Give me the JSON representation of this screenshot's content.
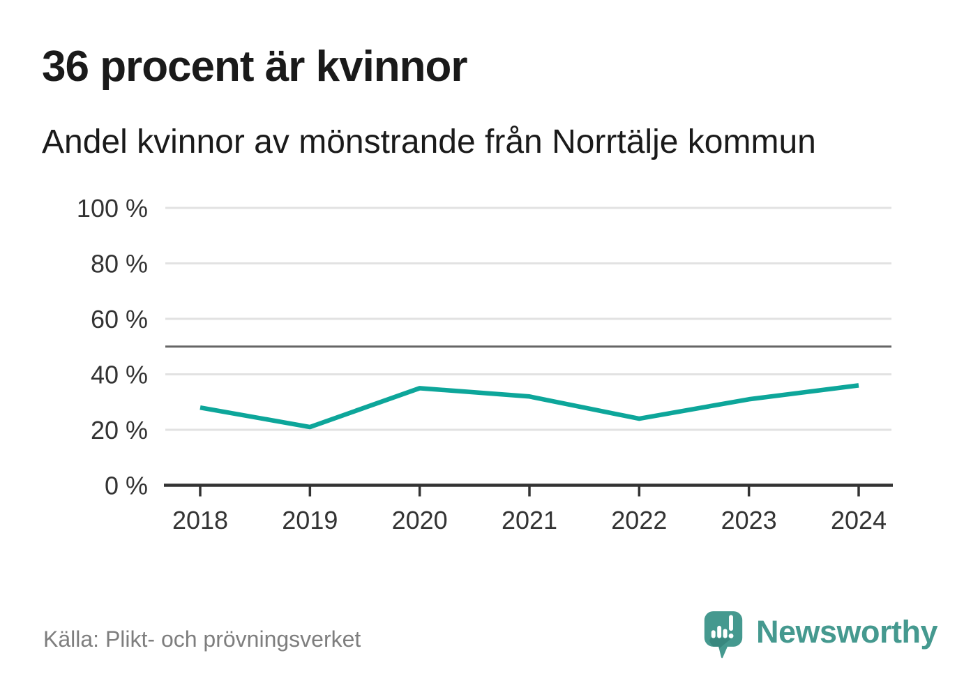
{
  "header": {
    "title": "36 procent är kvinnor",
    "subtitle": "Andel kvinnor av mönstrande från Norrtälje kommun"
  },
  "chart_data": {
    "type": "line",
    "title": "36 procent är kvinnor",
    "subtitle": "Andel kvinnor av mönstrande från Norrtälje kommun",
    "x": [
      2018,
      2019,
      2020,
      2021,
      2022,
      2023,
      2024
    ],
    "xtick_labels": [
      "2018",
      "2019",
      "2020",
      "2021",
      "2022",
      "2023",
      "2024"
    ],
    "series_name": "Andel kvinnor av mönstrande",
    "values": [
      28,
      21,
      35,
      32,
      24,
      31,
      36
    ],
    "unit": "%",
    "ylim": [
      0,
      100
    ],
    "yticks": [
      0,
      20,
      40,
      60,
      80,
      100
    ],
    "ytick_labels": [
      "0 %",
      "20 %",
      "40 %",
      "60 %",
      "80 %",
      "100 %"
    ],
    "reference_line": 50,
    "grid": true,
    "legend": false,
    "source": "Källa: Plikt- och prövningsverket"
  },
  "footer": {
    "source": "Källa: Plikt- och prövningsverket",
    "brand": "Newsworthy"
  },
  "colors": {
    "line": "#0da69a",
    "grid": "#e2e2e2",
    "axis": "#333333",
    "reference_line": "#666666",
    "tick_text": "#333333",
    "title_text": "#1a1a1a",
    "source_text": "#7e7e7e",
    "brand_teal": "#45998f",
    "brand_teal_dark": "#2e7a72"
  }
}
